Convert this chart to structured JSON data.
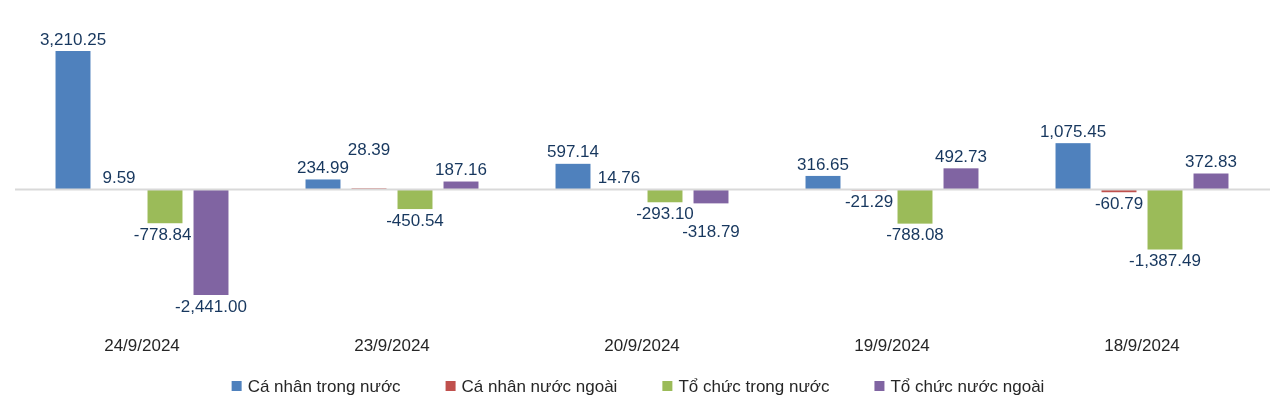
{
  "chart_data": {
    "type": "bar",
    "categories": [
      "24/9/2024",
      "23/9/2024",
      "20/9/2024",
      "19/9/2024",
      "18/9/2024"
    ],
    "series": [
      {
        "name": "Cá nhân trong nước",
        "color": "#4f81bd",
        "values": [
          3210.25,
          234.99,
          597.14,
          316.65,
          1075.45
        ],
        "value_labels": [
          "3,210.25",
          "234.99",
          "597.14",
          "316.65",
          "1,075.45"
        ]
      },
      {
        "name": "Cá nhân nước ngoài",
        "color": "#c0504d",
        "values": [
          9.59,
          28.39,
          14.76,
          -21.29,
          -60.79
        ],
        "value_labels": [
          "9.59",
          "28.39",
          "14.76",
          "-21.29",
          "-60.79"
        ]
      },
      {
        "name": "Tổ chức trong nước",
        "color": "#9bbb59",
        "values": [
          -778.84,
          -450.54,
          -293.1,
          -788.08,
          -1387.49
        ],
        "value_labels": [
          "-778.84",
          "-450.54",
          "-293.10",
          "-788.08",
          "-1,387.49"
        ]
      },
      {
        "name": "Tổ chức nước ngoài",
        "color": "#8064a2",
        "values": [
          -2441.0,
          187.16,
          -318.79,
          492.73,
          372.83
        ],
        "value_labels": [
          "-2,441.00",
          "187.16",
          "-318.79",
          "492.73",
          "372.83"
        ]
      }
    ],
    "legend": "bottom"
  }
}
